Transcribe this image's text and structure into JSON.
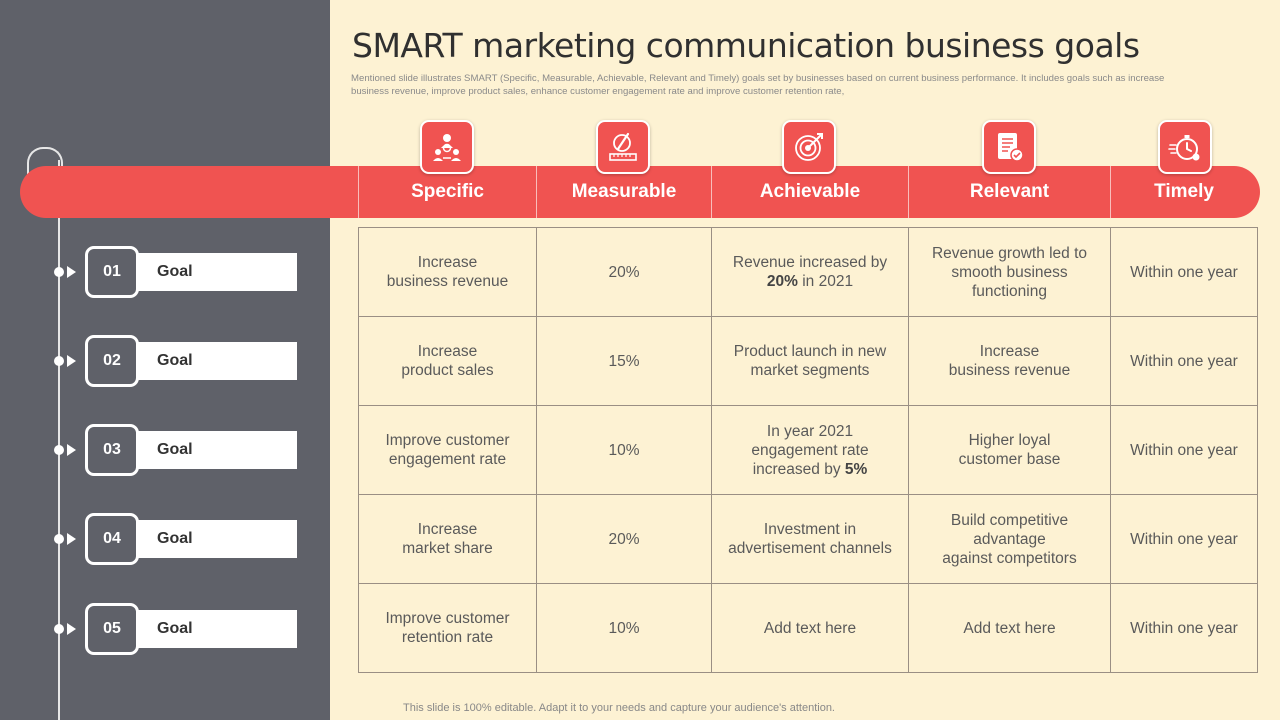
{
  "title": "SMART marketing communication business goals",
  "subtitle": "Mentioned slide illustrates SMART  (Specific, Measurable, Achievable, Relevant and Timely)  goals set by businesses based on current business performance. It includes goals such as increase business revenue, improve product sales, enhance customer engagement rate and improve customer retention rate,",
  "columns": [
    {
      "label": "Specific",
      "icon": "team-icon"
    },
    {
      "label": "Measurable",
      "icon": "measure-icon"
    },
    {
      "label": "Achievable",
      "icon": "target-icon"
    },
    {
      "label": "Relevant",
      "icon": "document-icon"
    },
    {
      "label": "Timely",
      "icon": "stopwatch-icon"
    }
  ],
  "goals": [
    {
      "number": "01",
      "label": "Goal"
    },
    {
      "number": "02",
      "label": "Goal"
    },
    {
      "number": "03",
      "label": "Goal"
    },
    {
      "number": "04",
      "label": "Goal"
    },
    {
      "number": "05",
      "label": "Goal"
    }
  ],
  "rows": [
    [
      {
        "text": "Increase\nbusiness revenue"
      },
      {
        "text": "20%"
      },
      {
        "text": "Revenue  increased by\n",
        "bold": "20%",
        "after": " in 2021"
      },
      {
        "text": "Revenue growth led to\nsmooth business\nfunctioning"
      },
      {
        "text": "Within one year"
      }
    ],
    [
      {
        "text": "Increase\nproduct sales"
      },
      {
        "text": "15%"
      },
      {
        "text": "Product launch  in new\nmarket segments"
      },
      {
        "text": "Increase\nbusiness revenue"
      },
      {
        "text": "Within one year"
      }
    ],
    [
      {
        "text": "Improve  customer\nengagement rate"
      },
      {
        "text": "10%"
      },
      {
        "text": "In year 2021\nengagement rate\nincreased by ",
        "bold": "5%",
        "after": ""
      },
      {
        "text": "Higher loyal\ncustomer base"
      },
      {
        "text": "Within one year"
      }
    ],
    [
      {
        "text": "Increase\nmarket share"
      },
      {
        "text": "20%"
      },
      {
        "text": "Investment  in\nadvertisement channels"
      },
      {
        "text": "Build competitive\nadvantage\nagainst competitors"
      },
      {
        "text": "Within one year"
      }
    ],
    [
      {
        "text": "Improve  customer\nretention rate"
      },
      {
        "text": "10%"
      },
      {
        "text": "Add text here"
      },
      {
        "text": "Add text here"
      },
      {
        "text": "Within one year"
      }
    ]
  ],
  "footer": "This slide is 100% editable. Adapt it to your needs and capture your audience's attention.",
  "colors": {
    "accent": "#f05351",
    "panel": "#5f6169",
    "background": "#fdf2d3"
  }
}
